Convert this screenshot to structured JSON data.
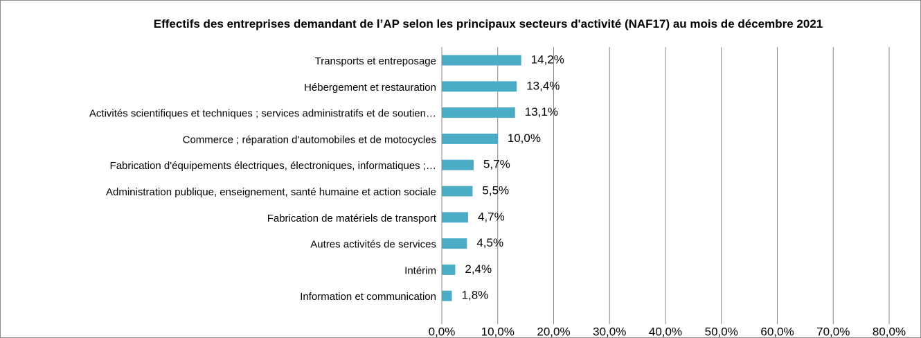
{
  "chart_data": {
    "type": "bar",
    "orientation": "horizontal",
    "title": "Effectifs des entreprises demandant de l’AP selon les principaux secteurs d'activité (NAF17) au mois de décembre 2021",
    "categories": [
      "Transports et entreposage",
      "Hébergement et restauration",
      "Activités scientifiques et techniques ; services administratifs et de soutien…",
      "Commerce ; réparation d'automobiles et de motocycles",
      "Fabrication d'équipements électriques, électroniques, informatiques ;…",
      "Administration publique, enseignement, santé humaine et action sociale",
      "Fabrication de matériels de transport",
      "Autres activités de services",
      "Intérim",
      "Information et communication"
    ],
    "values": [
      14.2,
      13.4,
      13.1,
      10.0,
      5.7,
      5.5,
      4.7,
      4.5,
      2.4,
      1.8
    ],
    "value_labels": [
      "14,2%",
      "13,4%",
      "13,1%",
      "10,0%",
      "5,7%",
      "5,5%",
      "4,7%",
      "4,5%",
      "2,4%",
      "1,8%"
    ],
    "color": "#4bacc6",
    "xlim": [
      0,
      80
    ],
    "xticks": [
      {
        "value": 0,
        "label": "0,0%"
      },
      {
        "value": 10,
        "label": "10,0%"
      },
      {
        "value": 20,
        "label": "20,0%"
      },
      {
        "value": 30,
        "label": "30,0%"
      },
      {
        "value": 40,
        "label": "40,0%"
      },
      {
        "value": 50,
        "label": "50,0%"
      },
      {
        "value": 60,
        "label": "60,0%"
      },
      {
        "value": 70,
        "label": "70,0%"
      },
      {
        "value": 80,
        "label": "80,0%"
      }
    ],
    "grid": true
  }
}
